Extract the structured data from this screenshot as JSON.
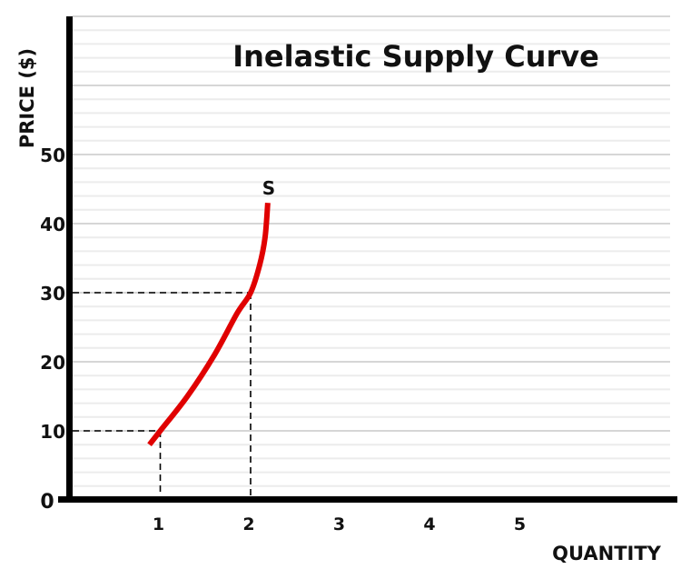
{
  "chart_data": {
    "type": "line",
    "title": "Inelastic Supply Curve",
    "xlabel": "QUANTITY",
    "ylabel": "PRICE ($)",
    "origin_label": "0",
    "x_ticks": [
      "1",
      "2",
      "3",
      "4",
      "5"
    ],
    "x_tick_values": [
      1,
      2,
      3,
      4,
      5
    ],
    "y_ticks": [
      "10",
      "20",
      "30",
      "40",
      "50"
    ],
    "y_tick_values": [
      10,
      20,
      30,
      40,
      50
    ],
    "xlim": [
      0,
      6.6
    ],
    "ylim": [
      0,
      70
    ],
    "grid": true,
    "legend": "none",
    "series": [
      {
        "name": "S",
        "color": "#e00000",
        "x": [
          0.88,
          1.0,
          1.3,
          1.6,
          1.85,
          2.0,
          2.1,
          2.16,
          2.19
        ],
        "y": [
          8,
          10,
          15,
          21,
          27,
          30,
          34,
          38,
          43
        ]
      }
    ],
    "annotations": [
      {
        "type": "dashed-guide",
        "x": 1,
        "y": 10
      },
      {
        "type": "dashed-guide",
        "x": 2,
        "y": 30
      },
      {
        "type": "curve-label",
        "text": "S",
        "x": 2.2,
        "y": 45
      }
    ]
  },
  "colors": {
    "curve": "#e00000",
    "axis": "#000000",
    "grid_major": "#d6d6d6",
    "grid_minor": "#ececec"
  }
}
